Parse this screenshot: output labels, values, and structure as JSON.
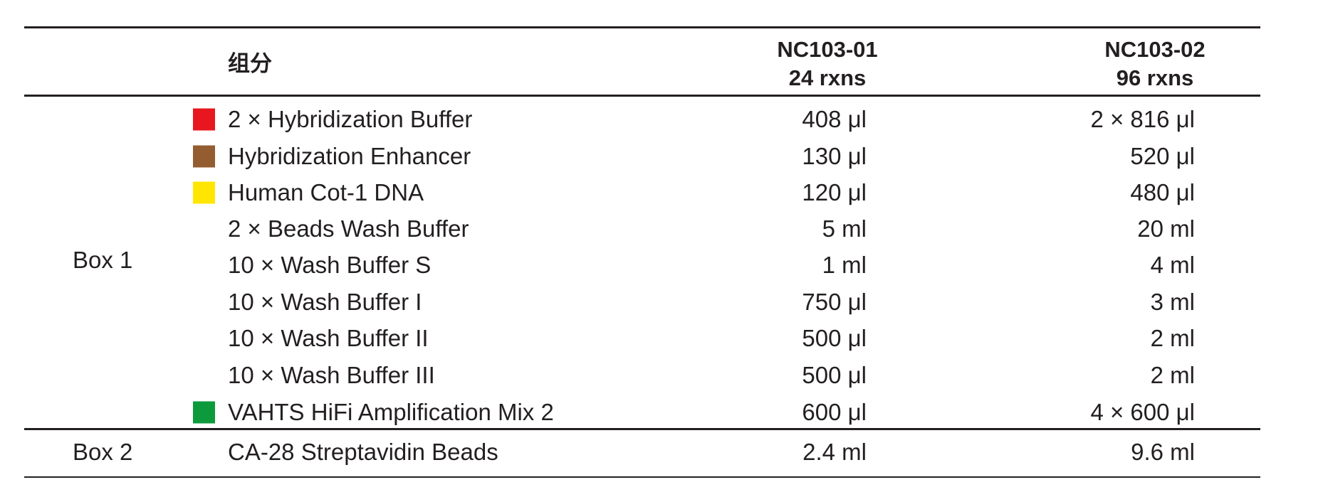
{
  "header": {
    "component": "组分",
    "columns": [
      {
        "code": "NC103-01",
        "size": "24 rxns"
      },
      {
        "code": "NC103-02",
        "size": "96 rxns"
      }
    ]
  },
  "groups": [
    {
      "label": "Box 1",
      "rows": [
        {
          "name": "2 × Hybridization Buffer",
          "color": "#e8161e",
          "values": [
            "408 μl",
            "2 × 816 μl"
          ]
        },
        {
          "name": "Hybridization Enhancer",
          "color": "#945d30",
          "values": [
            "130 μl",
            "520 μl"
          ]
        },
        {
          "name": "Human Cot-1 DNA",
          "color": "#ffe600",
          "values": [
            "120 μl",
            "480 μl"
          ]
        },
        {
          "name": "2 × Beads Wash Buffer",
          "values": [
            "5 ml",
            "20 ml"
          ]
        },
        {
          "name": "10 × Wash Buffer S",
          "values": [
            "1 ml",
            "4 ml"
          ]
        },
        {
          "name": "10 × Wash Buffer I",
          "values": [
            "750 μl",
            "3 ml"
          ]
        },
        {
          "name": "10 × Wash Buffer II",
          "values": [
            "500 μl",
            "2 ml"
          ]
        },
        {
          "name": "10 × Wash Buffer III",
          "values": [
            "500 μl",
            "2 ml"
          ]
        },
        {
          "name": "VAHTS HiFi Amplification Mix 2",
          "color": "#0d9a3c",
          "values": [
            "600 μl",
            "4 × 600 μl"
          ]
        }
      ]
    },
    {
      "label": "Box 2",
      "rows": [
        {
          "name": "CA-28 Streptavidin Beads",
          "values": [
            "2.4 ml",
            "9.6 ml"
          ]
        }
      ]
    }
  ]
}
